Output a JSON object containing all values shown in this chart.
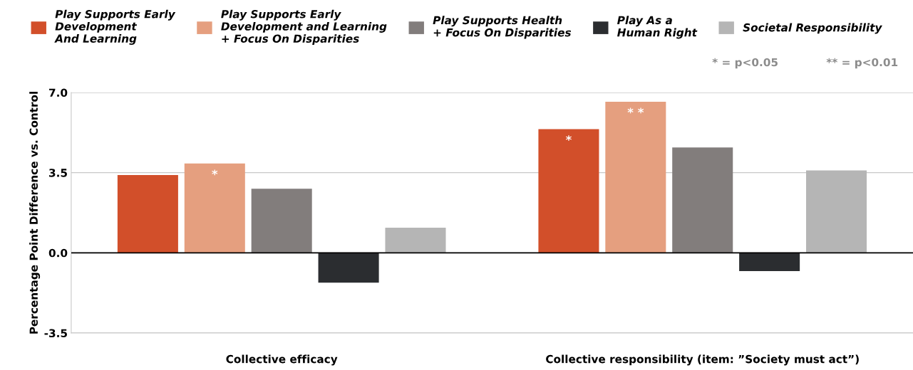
{
  "chart_data": {
    "type": "bar",
    "ylabel": "Percentage Point Difference vs. Control",
    "categories": [
      "Collective efficacy",
      "Collective responsibility (item: ”Society must act”)"
    ],
    "series": [
      {
        "name": "Play Supports Early\nDevelopment\nAnd Learning",
        "color": "#d24f2a",
        "values": [
          3.4,
          5.4
        ],
        "value_labels": [
          null,
          "*"
        ]
      },
      {
        "name": "Play Supports Early\nDevelopment and Learning\n+ Focus On Disparities",
        "color": "#e59f7f",
        "values": [
          3.9,
          6.6
        ],
        "value_labels": [
          "*",
          "* *"
        ]
      },
      {
        "name": "Play Supports Health\n+ Focus On Disparities",
        "color": "#827d7c",
        "values": [
          2.8,
          4.6
        ]
      },
      {
        "name": "Play As a\nHuman Right",
        "color": "#2b2d30",
        "values": [
          -1.3,
          -0.8
        ]
      },
      {
        "name": "Societal Responsibility",
        "color": "#b5b5b5",
        "values": [
          1.1,
          3.6
        ]
      }
    ],
    "ylim": [
      -3.5,
      7.0
    ],
    "yticks": [
      {
        "value": -3.5,
        "label": "-3.5"
      },
      {
        "value": 0,
        "label": "0.0"
      },
      {
        "value": 3.5,
        "label": "3.5"
      },
      {
        "value": 7.0,
        "label": "7.0"
      }
    ],
    "grid": "y",
    "legend": "top",
    "annotations": [
      "* = p<0.05",
      "** = p<0.01"
    ]
  }
}
